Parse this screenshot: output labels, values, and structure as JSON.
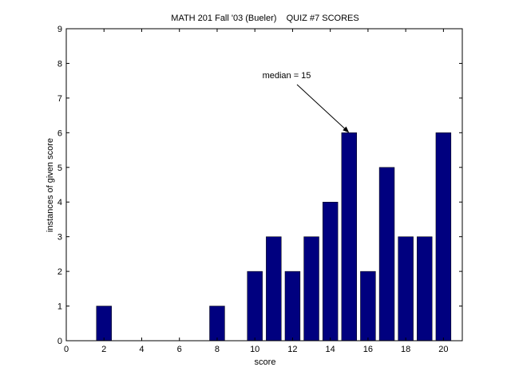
{
  "chart_data": {
    "type": "bar",
    "title": "MATH 201 Fall '03 (Bueler)    QUIZ #7 SCORES",
    "xlabel": "score",
    "ylabel": "instances of given score",
    "x": [
      2,
      8,
      10,
      11,
      12,
      13,
      14,
      15,
      16,
      17,
      18,
      19,
      20
    ],
    "values": [
      1,
      1,
      2,
      3,
      2,
      3,
      4,
      6,
      2,
      5,
      3,
      3,
      6
    ],
    "xlim": [
      0,
      21
    ],
    "ylim": [
      0,
      9
    ],
    "xticks": [
      "0",
      "2",
      "4",
      "6",
      "8",
      "10",
      "12",
      "14",
      "16",
      "18",
      "20"
    ],
    "yticks": [
      "0",
      "1",
      "2",
      "3",
      "4",
      "5",
      "6",
      "7",
      "8",
      "9"
    ],
    "bar_color": "#00007f",
    "grid": false,
    "annotation": {
      "text": "median = 15",
      "target_x": 15,
      "target_y": 6
    }
  }
}
